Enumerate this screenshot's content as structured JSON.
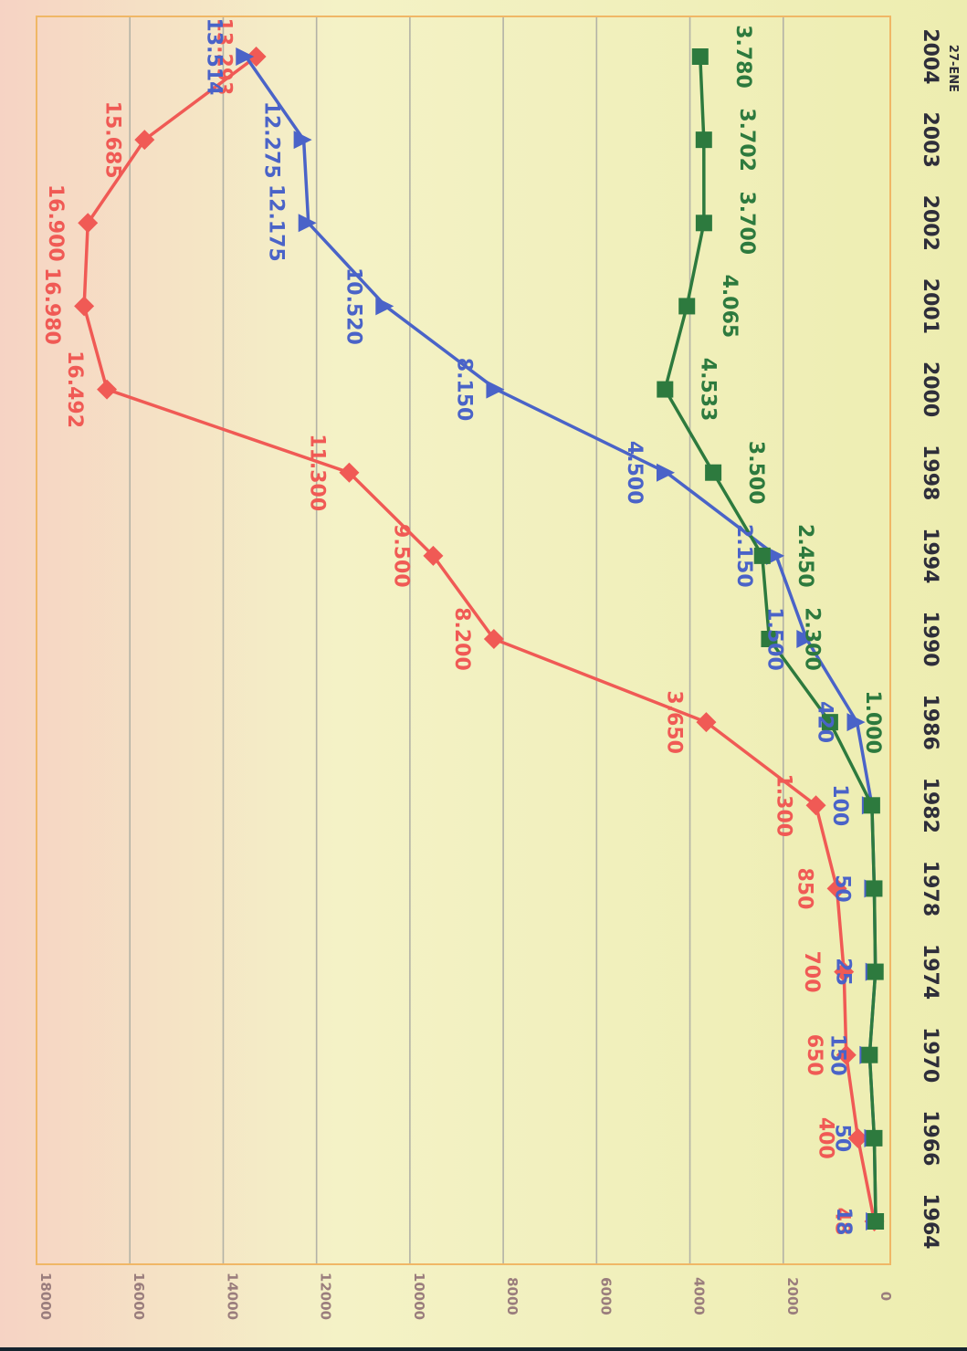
{
  "chart_data": {
    "type": "line",
    "title": "",
    "xlabel": "",
    "ylabel": "",
    "corner_note": "27-ENE",
    "categories": [
      "1964",
      "1966",
      "1970",
      "1974",
      "1978",
      "1982",
      "1986",
      "1990",
      "1994",
      "1998",
      "2000",
      "2001",
      "2002",
      "2003",
      "2004"
    ],
    "y_ticks": [
      "0",
      "2000",
      "4000",
      "6000",
      "8000",
      "10000",
      "12000",
      "14000",
      "16000",
      "18000"
    ],
    "ylim": [
      0,
      18000
    ],
    "grid": true,
    "rotated": true,
    "series": [
      {
        "color": "#f05a55",
        "marker": "diamond",
        "values": [
          48,
          400,
          650,
          700,
          850,
          1300,
          3650,
          8200,
          9500,
          11300,
          16492,
          16980,
          16900,
          15685,
          13293
        ],
        "labels": [
          "48",
          "400",
          "650",
          "700",
          "850",
          "1.300",
          "3.650",
          "8.200",
          "9.500",
          "11.300",
          "16.492",
          "16.980",
          "16.900",
          "15.685",
          "13.293"
        ]
      },
      {
        "color": "#4a63c8",
        "marker": "triangle",
        "values": [
          18,
          50,
          150,
          25,
          50,
          100,
          420,
          1500,
          2150,
          4500,
          8150,
          10520,
          12175,
          12275,
          13514
        ],
        "labels": [
          "18",
          "50",
          "150",
          "25",
          "50",
          "100",
          "420",
          "1.500",
          "2.150",
          "4.500",
          "8.150",
          "10.520",
          "12.175",
          "12.275",
          "13.514"
        ]
      },
      {
        "color": "#2d7a3e",
        "marker": "square",
        "values": [
          18,
          50,
          150,
          25,
          50,
          100,
          1000,
          2300,
          2450,
          3500,
          4533,
          4065,
          3700,
          3702,
          3780
        ],
        "labels": [
          "",
          "",
          "",
          "",
          "",
          "",
          "1.000",
          "2.300",
          "2.450",
          "3.500",
          "4.533",
          "4.065",
          "3.700",
          "3.702",
          "3.780"
        ]
      }
    ]
  }
}
